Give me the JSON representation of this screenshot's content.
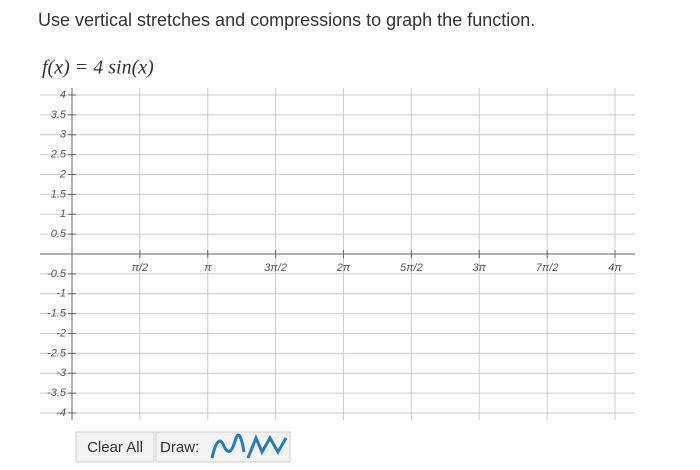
{
  "question": "Use vertical stretches and compressions to graph the function.",
  "function": "f(x) = 4 sin(x)",
  "graph": {
    "xlim": [
      0,
      12.566
    ],
    "ylim": [
      -4,
      4
    ],
    "xticks": [
      {
        "value": 1.5708,
        "label": "π/2"
      },
      {
        "value": 3.1416,
        "label": "π"
      },
      {
        "value": 4.7124,
        "label": "3π/2"
      },
      {
        "value": 6.2832,
        "label": "2π"
      },
      {
        "value": 7.854,
        "label": "5π/2"
      },
      {
        "value": 9.4248,
        "label": "3π"
      },
      {
        "value": 10.9956,
        "label": "7π/2"
      },
      {
        "value": 12.5664,
        "label": "4π"
      }
    ],
    "yticks": [
      4,
      3.5,
      3,
      2.5,
      2,
      1.5,
      1,
      0.5,
      -0.5,
      -1,
      -1.5,
      -2,
      -2.5,
      -3,
      -3.5,
      -4
    ]
  },
  "controls": {
    "clear": "Clear All",
    "draw": "Draw:"
  }
}
